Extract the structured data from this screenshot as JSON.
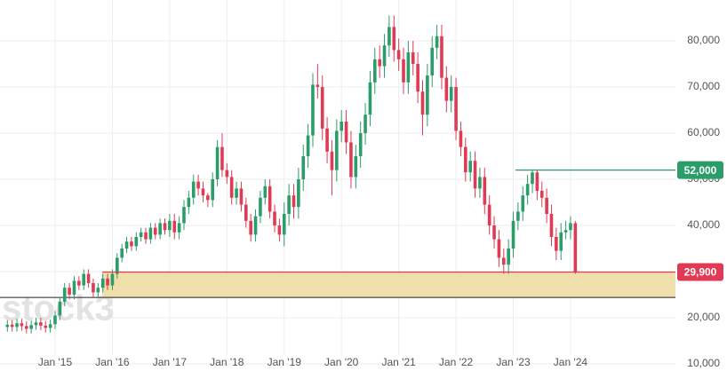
{
  "chart_data": {
    "type": "candlestick",
    "watermark": "stock3",
    "categories": [
      null,
      null,
      null,
      null,
      null,
      null,
      null,
      null,
      null,
      null,
      "Jan '15",
      null,
      null,
      null,
      null,
      null,
      null,
      null,
      null,
      null,
      null,
      null,
      "Jan '16",
      null,
      null,
      null,
      null,
      null,
      null,
      null,
      null,
      null,
      null,
      null,
      "Jan '17",
      null,
      null,
      null,
      null,
      null,
      null,
      null,
      null,
      null,
      null,
      null,
      "Jan '18",
      null,
      null,
      null,
      null,
      null,
      null,
      null,
      null,
      null,
      null,
      null,
      "Jan '19",
      null,
      null,
      null,
      null,
      null,
      null,
      null,
      null,
      null,
      null,
      null,
      "Jan '20",
      null,
      null,
      null,
      null,
      null,
      null,
      null,
      null,
      null,
      null,
      null,
      "Jan '21",
      null,
      null,
      null,
      null,
      null,
      null,
      null,
      null,
      null,
      null,
      null,
      "Jan '22",
      null,
      null,
      null,
      null,
      null,
      null,
      null,
      null,
      null,
      null,
      null,
      "Jan '23",
      null,
      null,
      null,
      null,
      null,
      null,
      null,
      null,
      null,
      null,
      null,
      "Jan '24",
      null
    ],
    "ohlc": [
      [
        18000,
        19500,
        17000,
        18500
      ],
      [
        18500,
        19500,
        17000,
        18000
      ],
      [
        18000,
        19800,
        17000,
        18800
      ],
      [
        18800,
        19800,
        17200,
        18200
      ],
      [
        18200,
        19200,
        16600,
        17600
      ],
      [
        17600,
        19400,
        16600,
        18400
      ],
      [
        18400,
        20000,
        17400,
        19000
      ],
      [
        19000,
        20000,
        17300,
        18300
      ],
      [
        18300,
        19300,
        16800,
        17800
      ],
      [
        17800,
        19600,
        16800,
        18600
      ],
      [
        18600,
        21500,
        17600,
        20500
      ],
      [
        20500,
        24500,
        19500,
        23500
      ],
      [
        23500,
        27500,
        22500,
        26500
      ],
      [
        26500,
        27500,
        24000,
        25000
      ],
      [
        25000,
        29000,
        24000,
        28000
      ],
      [
        28000,
        29000,
        26000,
        27000
      ],
      [
        27000,
        30500,
        26000,
        29500
      ],
      [
        29500,
        30500,
        26500,
        27500
      ],
      [
        27500,
        28500,
        24500,
        25500
      ],
      [
        25500,
        27500,
        24500,
        26500
      ],
      [
        26500,
        29500,
        25500,
        28500
      ],
      [
        28500,
        29500,
        26000,
        27000
      ],
      [
        27000,
        30500,
        26000,
        29500
      ],
      [
        29500,
        34000,
        28500,
        33000
      ],
      [
        33000,
        36000,
        32000,
        35000
      ],
      [
        35000,
        37500,
        34000,
        36500
      ],
      [
        36500,
        37500,
        34500,
        35500
      ],
      [
        35500,
        38500,
        34500,
        37500
      ],
      [
        37500,
        39500,
        36500,
        38500
      ],
      [
        38500,
        39500,
        36000,
        37000
      ],
      [
        37000,
        40500,
        36000,
        39500
      ],
      [
        39500,
        40500,
        37000,
        38000
      ],
      [
        38000,
        41500,
        37000,
        40500
      ],
      [
        40500,
        41500,
        38000,
        39000
      ],
      [
        39000,
        42500,
        37500,
        41000
      ],
      [
        41000,
        42500,
        37000,
        38500
      ],
      [
        38500,
        42000,
        37000,
        40500
      ],
      [
        40500,
        45500,
        39000,
        44000
      ],
      [
        44000,
        47500,
        42500,
        46000
      ],
      [
        46000,
        51000,
        44500,
        49500
      ],
      [
        49500,
        51000,
        46500,
        48000
      ],
      [
        48000,
        49500,
        45000,
        46500
      ],
      [
        46500,
        47000,
        44000,
        45500
      ],
      [
        45500,
        51500,
        44000,
        50000
      ],
      [
        50000,
        58500,
        48500,
        57000
      ],
      [
        57000,
        60000,
        50500,
        52000
      ],
      [
        52000,
        53500,
        49000,
        50500
      ],
      [
        50500,
        52000,
        44500,
        46000
      ],
      [
        46000,
        49500,
        44500,
        48000
      ],
      [
        48000,
        49500,
        43000,
        44500
      ],
      [
        44500,
        46000,
        39500,
        41000
      ],
      [
        41000,
        42500,
        36500,
        38000
      ],
      [
        38000,
        43500,
        36500,
        42000
      ],
      [
        42000,
        47500,
        40500,
        46000
      ],
      [
        46000,
        50000,
        44500,
        48500
      ],
      [
        48500,
        50000,
        41500,
        43000
      ],
      [
        43000,
        44500,
        38500,
        40000
      ],
      [
        40000,
        41500,
        36500,
        38000
      ],
      [
        38000,
        45000,
        35500,
        42500
      ],
      [
        42500,
        49000,
        40000,
        46500
      ],
      [
        46500,
        49000,
        41500,
        44000
      ],
      [
        44000,
        52500,
        41500,
        50000
      ],
      [
        50000,
        57500,
        47500,
        55000
      ],
      [
        55000,
        62000,
        52500,
        59500
      ],
      [
        59500,
        73000,
        57000,
        70500
      ],
      [
        70500,
        75000,
        67500,
        70000
      ],
      [
        70000,
        72500,
        58500,
        61000
      ],
      [
        61000,
        63500,
        53500,
        56000
      ],
      [
        56000,
        58500,
        46500,
        52000
      ],
      [
        52000,
        63000,
        49500,
        60500
      ],
      [
        60500,
        65000,
        58000,
        62500
      ],
      [
        62500,
        65000,
        55500,
        58000
      ],
      [
        58000,
        60500,
        48000,
        50500
      ],
      [
        50500,
        57500,
        48000,
        55000
      ],
      [
        55000,
        62500,
        52500,
        60000
      ],
      [
        60000,
        66500,
        57500,
        64000
      ],
      [
        64000,
        73500,
        61500,
        71000
      ],
      [
        71000,
        78500,
        68500,
        76000
      ],
      [
        76000,
        79000,
        72000,
        74500
      ],
      [
        74500,
        81500,
        72000,
        79000
      ],
      [
        79000,
        85500,
        76500,
        83000
      ],
      [
        83000,
        85500,
        75500,
        78000
      ],
      [
        78000,
        80500,
        73500,
        76000
      ],
      [
        76000,
        78500,
        68500,
        71000
      ],
      [
        71000,
        80000,
        68500,
        77500
      ],
      [
        77500,
        80000,
        72500,
        75000
      ],
      [
        75000,
        77500,
        66500,
        69000
      ],
      [
        69000,
        71500,
        59500,
        64000
      ],
      [
        64000,
        75000,
        61500,
        72500
      ],
      [
        72500,
        81000,
        70000,
        78500
      ],
      [
        78500,
        83500,
        76000,
        81000
      ],
      [
        81000,
        83500,
        69500,
        72000
      ],
      [
        72000,
        74500,
        64500,
        67000
      ],
      [
        67000,
        72500,
        64500,
        70000
      ],
      [
        70000,
        72000,
        58500,
        60500
      ],
      [
        60500,
        62500,
        55000,
        57000
      ],
      [
        57000,
        59000,
        49500,
        51500
      ],
      [
        51500,
        56000,
        49500,
        54000
      ],
      [
        54000,
        56000,
        46000,
        48000
      ],
      [
        48000,
        52500,
        46000,
        50500
      ],
      [
        50500,
        52500,
        42500,
        44500
      ],
      [
        44500,
        46500,
        38000,
        40000
      ],
      [
        40000,
        42000,
        35000,
        37000
      ],
      [
        37000,
        39000,
        31000,
        33000
      ],
      [
        33000,
        35000,
        29500,
        31500
      ],
      [
        31500,
        37000,
        29500,
        35000
      ],
      [
        35000,
        43000,
        33000,
        41000
      ],
      [
        41000,
        45000,
        39000,
        43000
      ],
      [
        43000,
        48500,
        41000,
        46500
      ],
      [
        46500,
        51000,
        44500,
        49000
      ],
      [
        49000,
        52000,
        47000,
        51500
      ],
      [
        51500,
        52000,
        45500,
        47500
      ],
      [
        47500,
        49500,
        44000,
        46000
      ],
      [
        46000,
        48000,
        40500,
        42500
      ],
      [
        42500,
        44500,
        35500,
        37500
      ],
      [
        37500,
        39500,
        32500,
        34500
      ],
      [
        34500,
        40500,
        32500,
        38500
      ],
      [
        38500,
        41000,
        37000,
        39000
      ],
      [
        39000,
        42000,
        37000,
        40500
      ],
      [
        40500,
        41000,
        29500,
        30000
      ]
    ],
    "up_color": "#2a9d6a",
    "down_color": "#e03a55",
    "ylim": [
      8460,
      88850
    ],
    "yticks": [
      {
        "value": 10000,
        "label": "10,000"
      },
      {
        "value": 20000,
        "label": "20,000"
      },
      {
        "value": 30000,
        "label": "30,000"
      },
      {
        "value": 40000,
        "label": "40,000"
      },
      {
        "value": 50000,
        "label": "50,000"
      },
      {
        "value": 60000,
        "label": "60,000"
      },
      {
        "value": 70000,
        "label": "70,000"
      },
      {
        "value": 80000,
        "label": "80,000"
      }
    ],
    "grid": true,
    "zone": {
      "low": 24400,
      "high": 29900,
      "color": "#f0dfaa"
    },
    "levels": [
      {
        "value": 52000,
        "label": "52,000",
        "color": "#2a9d6a"
      },
      {
        "value": 29900,
        "label": "29,900",
        "color": "#e03a55"
      }
    ]
  }
}
